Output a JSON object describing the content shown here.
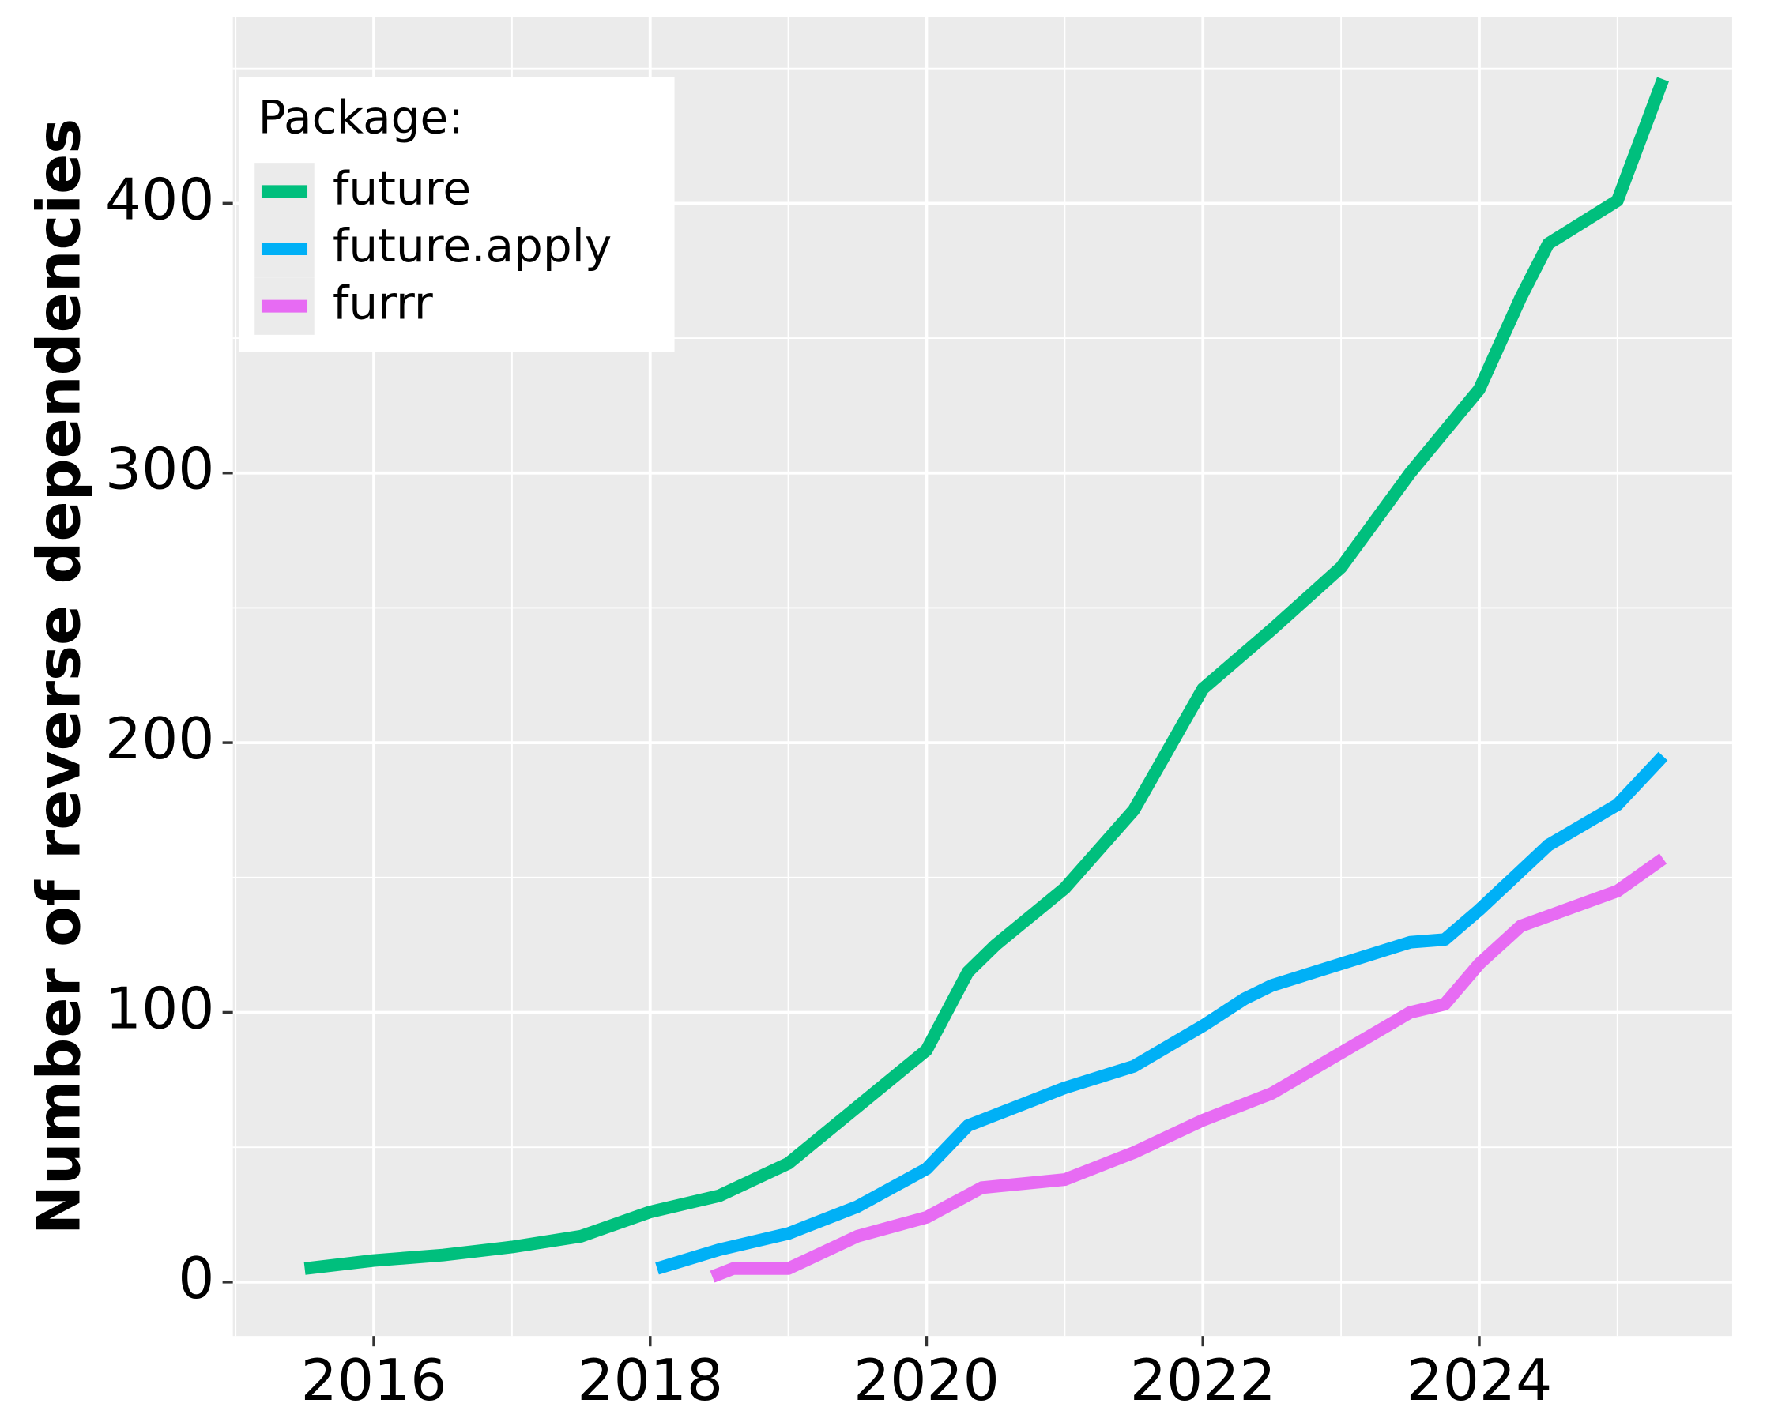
{
  "chart_data": {
    "type": "line",
    "y_label": "Number of reverse dependencies",
    "legend_title": "Package:",
    "legend_position": "top-left",
    "grid": true,
    "xlim": [
      2014.98,
      2025.83
    ],
    "xticks": [
      2016,
      2018,
      2020,
      2022,
      2024
    ],
    "ylim": [
      -20,
      469
    ],
    "yticks": [
      0,
      100,
      200,
      300,
      400
    ],
    "series": [
      {
        "name": "future",
        "color": "#00BF7D",
        "x": [
          2015.5,
          2016,
          2016.5,
          2017,
          2017.5,
          2018,
          2018.5,
          2019,
          2019.5,
          2020,
          2020.3,
          2020.5,
          2021,
          2021.5,
          2022,
          2022.5,
          2023,
          2023.5,
          2024,
          2024.3,
          2024.5,
          2025,
          2025.33
        ],
        "values": [
          5,
          8,
          10,
          13,
          17,
          26,
          32,
          44,
          65,
          86,
          115,
          125,
          146,
          175,
          220,
          242,
          265,
          300,
          331,
          365,
          385,
          401,
          446
        ]
      },
      {
        "name": "future.apply",
        "color": "#00B0F6",
        "x": [
          2018.05,
          2018.5,
          2019,
          2019.5,
          2020,
          2020.3,
          2020.5,
          2021,
          2021.5,
          2022,
          2022.3,
          2022.5,
          2023,
          2023.5,
          2023.75,
          2024,
          2024.5,
          2025,
          2025.33
        ],
        "values": [
          5,
          12,
          18,
          28,
          42,
          58,
          62,
          72,
          80,
          95,
          105,
          110,
          118,
          126,
          127,
          138,
          162,
          177,
          195
        ]
      },
      {
        "name": "furrr",
        "color": "#E76BF3",
        "x": [
          2018.45,
          2018.6,
          2019,
          2019.5,
          2020,
          2020.4,
          2021,
          2021.5,
          2022,
          2022.5,
          2023,
          2023.5,
          2023.75,
          2024,
          2024.3,
          2025,
          2025.33
        ],
        "values": [
          2,
          5,
          5,
          17,
          24,
          35,
          38,
          48,
          60,
          70,
          85,
          100,
          103,
          118,
          132,
          145,
          157
        ]
      }
    ]
  }
}
